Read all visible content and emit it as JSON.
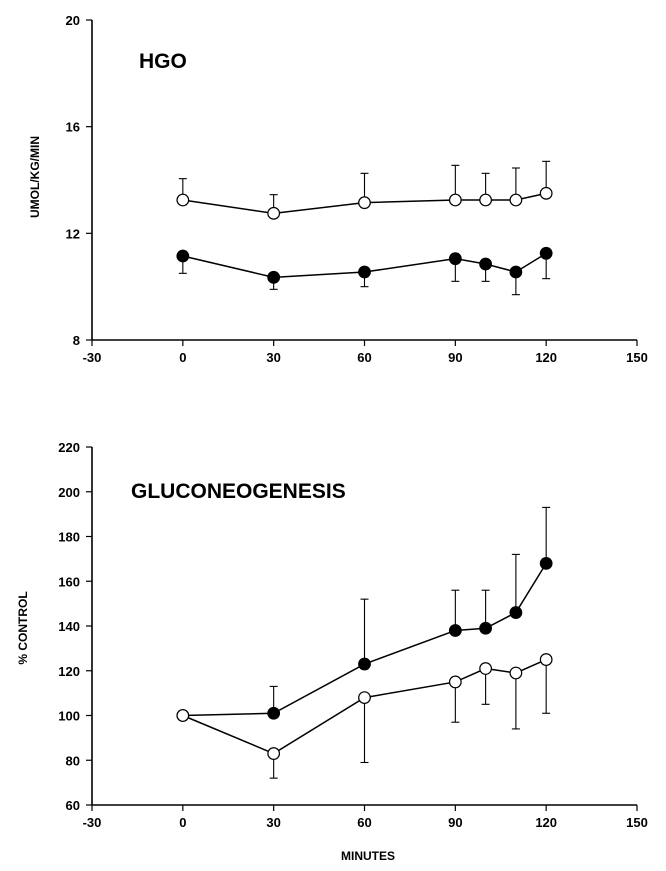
{
  "chart_data": [
    {
      "type": "line",
      "title": "HGO",
      "xlabel": "",
      "ylabel": "UMOL/KG/MIN",
      "xlim": [
        -30,
        150
      ],
      "ylim": [
        8,
        20
      ],
      "xticks": [
        -30,
        0,
        30,
        60,
        90,
        120,
        150
      ],
      "yticks": [
        8,
        12,
        16,
        20
      ],
      "x": [
        0,
        30,
        60,
        90,
        100,
        110,
        120
      ],
      "series": [
        {
          "marker": "open",
          "values": [
            13.25,
            12.75,
            13.15,
            13.25,
            13.25,
            13.25,
            13.5
          ],
          "error_up": [
            0.8,
            0.7,
            1.1,
            1.3,
            1.0,
            1.2,
            1.2
          ]
        },
        {
          "marker": "filled",
          "values": [
            11.15,
            10.35,
            10.55,
            11.05,
            10.85,
            10.55,
            11.25
          ],
          "error_down": [
            0.65,
            0.45,
            0.55,
            0.85,
            0.65,
            0.85,
            0.95
          ]
        }
      ]
    },
    {
      "type": "line",
      "title": "GLUCONEOGENESIS",
      "xlabel": "MINUTES",
      "ylabel": "% CONTROL",
      "xlim": [
        -30,
        150
      ],
      "ylim": [
        60,
        220
      ],
      "xticks": [
        -30,
        0,
        30,
        60,
        90,
        120,
        150
      ],
      "yticks": [
        60,
        80,
        100,
        120,
        140,
        160,
        180,
        200,
        220
      ],
      "x": [
        0,
        30,
        60,
        90,
        100,
        110,
        120
      ],
      "series": [
        {
          "marker": "filled",
          "values": [
            100,
            101,
            123,
            138,
            139,
            146,
            168
          ],
          "error_up": [
            0,
            12,
            29,
            18,
            17,
            26,
            25
          ]
        },
        {
          "marker": "open",
          "values": [
            100,
            83,
            108,
            115,
            121,
            119,
            125
          ],
          "error_down": [
            0,
            11,
            29,
            18,
            16,
            25,
            24
          ]
        }
      ]
    }
  ]
}
